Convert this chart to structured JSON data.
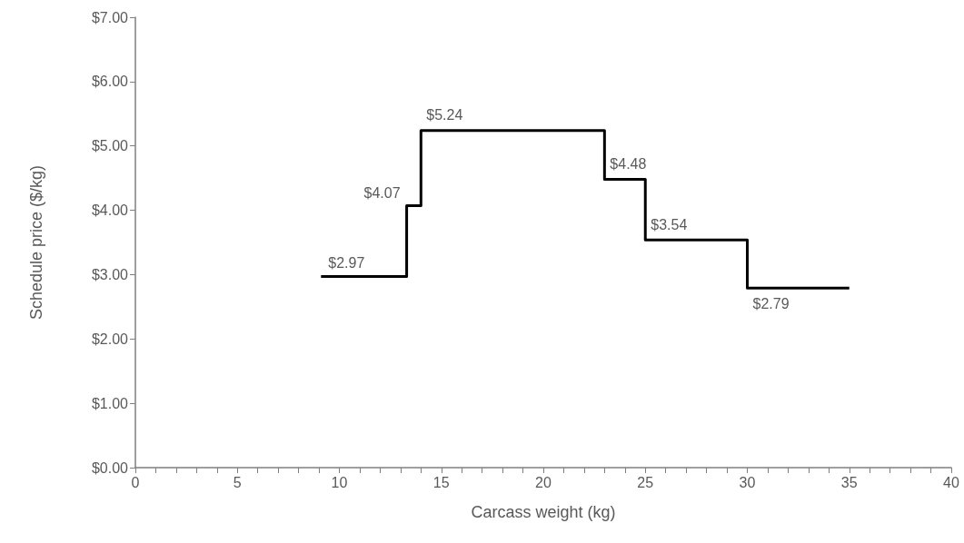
{
  "chart_data": {
    "type": "step",
    "xlabel": "Carcass weight (kg)",
    "ylabel": "Schedule price ($/kg)",
    "x": [
      9.1,
      13.3,
      14,
      23,
      25,
      30,
      35
    ],
    "series": [
      {
        "color": "#000000",
        "values": [
          2.97,
          4.07,
          5.24,
          4.48,
          3.54,
          2.79,
          2.79
        ],
        "value_labels": [
          "$2.97",
          "$4.07",
          "$5.24",
          "$4.48",
          "$3.54",
          "$2.79",
          null
        ]
      }
    ],
    "xlim": [
      0,
      40
    ],
    "xticks": [
      0,
      {
        "value": 1,
        "label": null
      },
      {
        "value": 2,
        "label": null
      },
      {
        "value": 3,
        "label": null
      },
      {
        "value": 4,
        "label": null
      },
      5,
      {
        "value": 6,
        "label": null
      },
      {
        "value": 7,
        "label": null
      },
      {
        "value": 8,
        "label": null
      },
      {
        "value": 9,
        "label": null
      },
      10,
      {
        "value": 11,
        "label": null
      },
      {
        "value": 12,
        "label": null
      },
      {
        "value": 13,
        "label": null
      },
      {
        "value": 14,
        "label": null
      },
      15,
      {
        "value": 16,
        "label": null
      },
      {
        "value": 17,
        "label": null
      },
      {
        "value": 18,
        "label": null
      },
      {
        "value": 19,
        "label": null
      },
      20,
      {
        "value": 21,
        "label": null
      },
      {
        "value": 22,
        "label": null
      },
      {
        "value": 23,
        "label": null
      },
      {
        "value": 24,
        "label": null
      },
      25,
      {
        "value": 26,
        "label": null
      },
      {
        "value": 27,
        "label": null
      },
      {
        "value": 28,
        "label": null
      },
      {
        "value": 29,
        "label": null
      },
      30,
      {
        "value": 31,
        "label": null
      },
      {
        "value": 32,
        "label": null
      },
      {
        "value": 33,
        "label": null
      },
      {
        "value": 34,
        "label": null
      },
      35,
      {
        "value": 36,
        "label": null
      },
      {
        "value": 37,
        "label": null
      },
      {
        "value": 38,
        "label": null
      },
      {
        "value": 39,
        "label": null
      },
      40
    ],
    "ylim": [
      0,
      7
    ],
    "yticks": [
      {
        "value": 0,
        "label": "$0.00"
      },
      {
        "value": 1,
        "label": "$1.00"
      },
      {
        "value": 2,
        "label": "$2.00"
      },
      {
        "value": 3,
        "label": "$3.00"
      },
      {
        "value": 4,
        "label": "$4.00"
      },
      {
        "value": 5,
        "label": "$5.00"
      },
      {
        "value": 6,
        "label": "$6.00"
      },
      {
        "value": 7,
        "label": "$7.00"
      }
    ],
    "grid": false,
    "marker": "none",
    "line_style": "solid"
  }
}
